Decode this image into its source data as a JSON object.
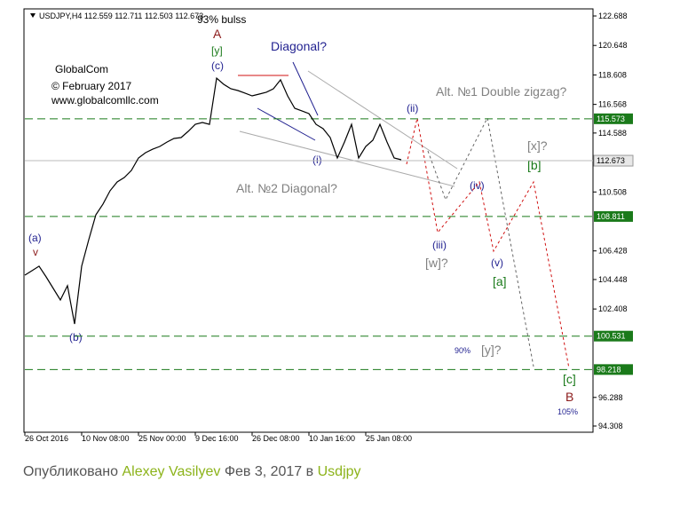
{
  "chart_data": {
    "type": "line",
    "header": "USDJPY,H4  112.559 112.711 112.503 112.673",
    "color": "#000000",
    "categories": [
      "26 Oct 2016",
      null,
      null,
      null,
      null,
      null,
      null,
      null,
      "10 Nov 08:00",
      null,
      null,
      null,
      null,
      null,
      null,
      null,
      "25 Nov 00:00",
      null,
      null,
      null,
      null,
      null,
      null,
      null,
      "9 Dec 16:00",
      null,
      null,
      null,
      null,
      null,
      null,
      null,
      "26 Dec 08:00",
      null,
      null,
      null,
      null,
      null,
      null,
      null,
      "10 Jan 16:00",
      null,
      null,
      null,
      null,
      null,
      null,
      null,
      "25 Jan 08:00",
      null,
      null,
      null,
      null,
      null
    ],
    "values": [
      104.75,
      105.06,
      105.37,
      104.63,
      103.83,
      103.03,
      104.02,
      101.37,
      105.37,
      107.21,
      108.93,
      109.67,
      110.59,
      111.2,
      111.51,
      112.0,
      112.86,
      113.23,
      113.47,
      113.66,
      113.96,
      114.21,
      114.27,
      114.7,
      115.19,
      115.32,
      115.19,
      118.39,
      117.96,
      117.65,
      117.53,
      117.35,
      117.16,
      117.28,
      117.41,
      117.65,
      118.27,
      117.16,
      116.3,
      116.12,
      115.93,
      115.19,
      114.89,
      114.27,
      112.86,
      113.96,
      115.19,
      112.86,
      113.66,
      114.09,
      115.19,
      113.96,
      112.86,
      112.74
    ],
    "ylim": [
      93.878,
      123.18
    ],
    "yticks": [
      122.688,
      120.648,
      118.608,
      116.568,
      114.588,
      110.508,
      106.428,
      104.448,
      102.408,
      96.288,
      94.308
    ],
    "levels": [
      115.573,
      108.811,
      100.531,
      98.218
    ],
    "level_color": "#1a7a1a",
    "current": 112.673,
    "annotations": [
      "93% bulss",
      "A",
      "[y]",
      "(c)",
      "Diagonal?",
      "GlobalCom",
      "© February 2017",
      "www.globalcomllc.com",
      "(ii)",
      "Alt. №1 Double zigzag?",
      "(i)",
      "Alt. №2 Diagonal?",
      "(iv)",
      "[x]?",
      "[b]",
      "(iii)",
      "[w]?",
      "(v)",
      "[a]",
      "(a)",
      "v",
      "(b)",
      "90%",
      "[y]?",
      "[c]",
      "B",
      "105%"
    ]
  },
  "footer": {
    "prefix": "Опубликовано",
    "author": "Alexey Vasilyev",
    "date": "Фев 3, 2017 в",
    "symbol": "Usdjpy"
  }
}
